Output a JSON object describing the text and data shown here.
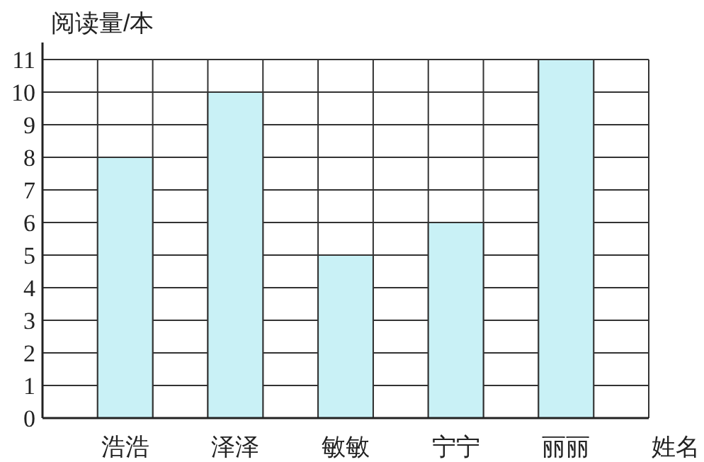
{
  "chart_data": {
    "type": "bar",
    "ylabel": "阅读量/本",
    "xlabel": "姓名",
    "categories": [
      "浩浩",
      "泽泽",
      "敏敏",
      "宁宁",
      "丽丽"
    ],
    "values": [
      8,
      10,
      5,
      6,
      11
    ],
    "color": "#c9f1f6",
    "ylim": [
      0,
      11
    ],
    "yticks": [
      0,
      1,
      2,
      3,
      4,
      5,
      6,
      7,
      8,
      9,
      10,
      11
    ],
    "grid": true
  }
}
